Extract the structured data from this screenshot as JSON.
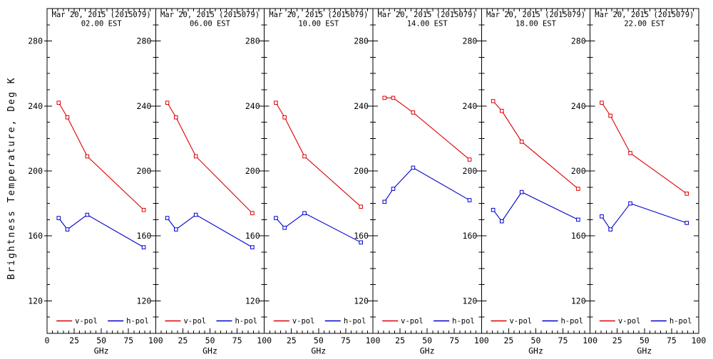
{
  "figure": {
    "ylabel": "Brightness Temperature, Deg K",
    "xlabel": "GHz"
  },
  "colors": {
    "vpol": "#dd0000",
    "hpol": "#0000cc",
    "axis": "#000000",
    "background": "#ffffff"
  },
  "chart_data": {
    "type": "line",
    "x": [
      10.7,
      18.7,
      37,
      89
    ],
    "xlabel": "GHz",
    "ylabel": "Brightness Temperature, Deg K",
    "xlim": [
      0,
      100
    ],
    "ylim": [
      100,
      300
    ],
    "xticks": [
      0,
      25,
      50,
      75,
      100
    ],
    "yticks": [
      120,
      160,
      200,
      240,
      280
    ],
    "x_minor_step": 5,
    "y_minor_step": 10,
    "grid": false,
    "legend_position": "bottom-inside-each-panel",
    "legend": [
      {
        "name": "v-pol",
        "color": "#dd0000"
      },
      {
        "name": "h-pol",
        "color": "#0000cc"
      }
    ],
    "panels": [
      {
        "title": "Mar 20, 2015 (2015079)",
        "subtitle": "02.00 EST",
        "series": [
          {
            "name": "v-pol",
            "values": [
              242,
              233,
              209,
              176
            ]
          },
          {
            "name": "h-pol",
            "values": [
              171,
              164,
              173,
              153
            ]
          }
        ]
      },
      {
        "title": "Mar 20, 2015 (2015079)",
        "subtitle": "06.00 EST",
        "series": [
          {
            "name": "v-pol",
            "values": [
              242,
              233,
              209,
              174
            ]
          },
          {
            "name": "h-pol",
            "values": [
              171,
              164,
              173,
              153
            ]
          }
        ]
      },
      {
        "title": "Mar 20, 2015 (2015079)",
        "subtitle": "10.00 EST",
        "series": [
          {
            "name": "v-pol",
            "values": [
              242,
              233,
              209,
              178
            ]
          },
          {
            "name": "h-pol",
            "values": [
              171,
              165,
              174,
              156
            ]
          }
        ]
      },
      {
        "title": "Mar 20, 2015 (2015079)",
        "subtitle": "14.00 EST",
        "series": [
          {
            "name": "v-pol",
            "values": [
              245,
              245,
              236,
              207
            ]
          },
          {
            "name": "h-pol",
            "values": [
              181,
              189,
              202,
              182
            ]
          }
        ]
      },
      {
        "title": "Mar 20, 2015 (2015079)",
        "subtitle": "18.00 EST",
        "series": [
          {
            "name": "v-pol",
            "values": [
              243,
              237,
              218,
              189
            ]
          },
          {
            "name": "h-pol",
            "values": [
              176,
              169,
              187,
              170
            ]
          }
        ]
      },
      {
        "title": "Mar 20, 2015 (2015079)",
        "subtitle": "22.00 EST",
        "series": [
          {
            "name": "v-pol",
            "values": [
              242,
              234,
              211,
              186
            ]
          },
          {
            "name": "h-pol",
            "values": [
              172,
              164,
              180,
              168
            ]
          }
        ]
      }
    ]
  }
}
